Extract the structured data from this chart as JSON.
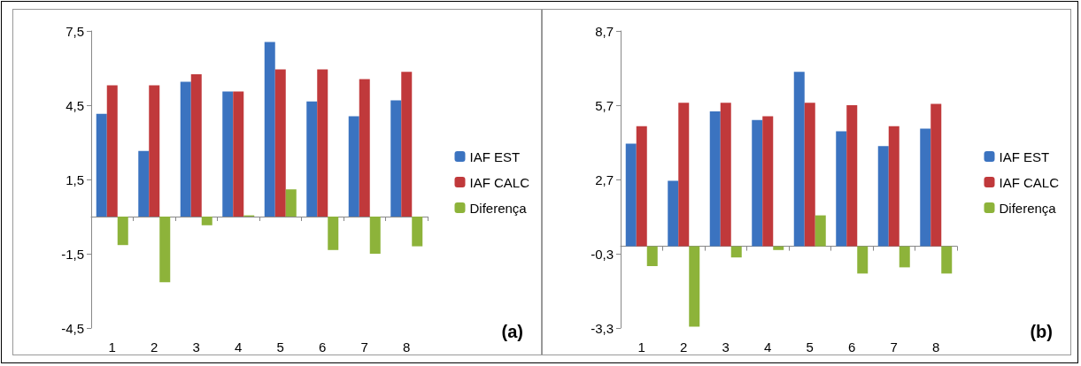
{
  "chart_data": [
    {
      "type": "bar",
      "categories": [
        "1",
        "2",
        "3",
        "4",
        "5",
        "6",
        "7",
        "8"
      ],
      "series": [
        {
          "name": "IAF EST",
          "color": "#3b73c0",
          "values": [
            4.15,
            2.65,
            5.45,
            5.05,
            7.05,
            4.65,
            4.05,
            4.7
          ]
        },
        {
          "name": "IAF CALC",
          "color": "#c0393b",
          "values": [
            5.3,
            5.3,
            5.75,
            5.05,
            5.95,
            5.95,
            5.55,
            5.85
          ]
        },
        {
          "name": "Diferença",
          "color": "#8db33a",
          "values": [
            -1.15,
            -2.65,
            -0.35,
            0.05,
            1.1,
            -1.35,
            -1.5,
            -1.2
          ]
        }
      ],
      "ylim": [
        -4.5,
        7.5
      ],
      "yticks": [
        {
          "value": -4.5,
          "label": "-4,5"
        },
        {
          "value": -1.5,
          "label": "-1,5"
        },
        {
          "value": 1.5,
          "label": "1,5"
        },
        {
          "value": 4.5,
          "label": "4,5"
        },
        {
          "value": 7.5,
          "label": "7,5"
        }
      ],
      "grid": false,
      "legend": "right",
      "annotations": [
        "(a)"
      ]
    },
    {
      "type": "bar",
      "categories": [
        "1",
        "2",
        "3",
        "4",
        "5",
        "6",
        "7",
        "8"
      ],
      "series": [
        {
          "name": "IAF EST",
          "color": "#3b73c0",
          "values": [
            4.15,
            2.65,
            5.45,
            5.1,
            7.05,
            4.65,
            4.05,
            4.75
          ]
        },
        {
          "name": "IAF CALC",
          "color": "#c0393b",
          "values": [
            4.85,
            5.8,
            5.8,
            5.25,
            5.8,
            5.7,
            4.85,
            5.75
          ]
        },
        {
          "name": "Diferença",
          "color": "#8db33a",
          "values": [
            -0.8,
            -3.25,
            -0.45,
            -0.15,
            1.25,
            -1.1,
            -0.85,
            -1.1
          ]
        }
      ],
      "ylim": [
        -3.3,
        8.7
      ],
      "yticks": [
        {
          "value": -3.3,
          "label": "-3,3"
        },
        {
          "value": -0.3,
          "label": "-0,3"
        },
        {
          "value": 2.7,
          "label": "2,7"
        },
        {
          "value": 5.7,
          "label": "5,7"
        },
        {
          "value": 8.7,
          "label": "8,7"
        }
      ],
      "grid": false,
      "legend": "right",
      "annotations": [
        "(b)"
      ]
    }
  ]
}
